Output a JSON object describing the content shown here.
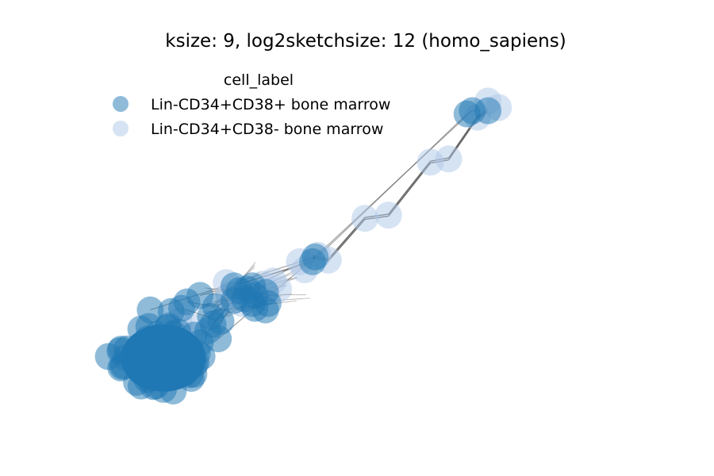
{
  "chart_data": {
    "type": "scatter",
    "subtype": "network-graph",
    "title": "ksize: 9, log2sketchsize: 12 (homo_sapiens)",
    "xlabel": "",
    "ylabel": "",
    "axes_visible": false,
    "grid": false,
    "legend": {
      "title": "cell_label",
      "placement": "top-left",
      "entries": [
        {
          "label": "Lin-CD34+CD38+ bone marrow",
          "color": "#1f77b4",
          "alpha": 0.5
        },
        {
          "label": "Lin-CD34+CD38- bone marrow",
          "color": "#aec7e8",
          "alpha": 0.5
        }
      ]
    },
    "xlim": [
      0,
      100
    ],
    "ylim": [
      0,
      100
    ],
    "series": [
      {
        "name": "Lin-CD34+CD38+ bone marrow",
        "cluster": {
          "center": [
            11.5,
            12.0
          ],
          "spread": [
            8.5,
            11.0
          ],
          "count": 60
        },
        "x": [
          1.0,
          9.0,
          13.0,
          15.0,
          16.0,
          18.5,
          20.5,
          21.0,
          20.0,
          22.0,
          22.5,
          21.5,
          25.0,
          25.0,
          26.0,
          27.5,
          28.5,
          29.0,
          28.5,
          29.0,
          27.0,
          31.0,
          31.5,
          31.0,
          40.5,
          40.0,
          69.5,
          70.5,
          73.5
        ],
        "y": [
          12.5,
          27.0,
          26.5,
          27.5,
          29.5,
          31.5,
          25.0,
          22.5,
          20.5,
          18.0,
          23.5,
          28.0,
          34.5,
          30.0,
          33.0,
          33.5,
          34.5,
          31.5,
          29.0,
          27.5,
          30.5,
          32.5,
          29.0,
          27.0,
          43.5,
          42.0,
          88.0,
          89.0,
          89.0
        ]
      },
      {
        "name": "Lin-CD34+CD38- bone marrow",
        "x": [
          14.5,
          17.5,
          23.5,
          24.0,
          26.5,
          30.5,
          32.5,
          33.5,
          37.5,
          38.5,
          41.0,
          43.0,
          50.0,
          54.5,
          62.5,
          66.0,
          71.5,
          73.5,
          75.5
        ],
        "y": [
          23.5,
          21.5,
          35.5,
          31.5,
          29.0,
          35.0,
          36.0,
          33.5,
          42.0,
          39.5,
          44.0,
          42.5,
          55.5,
          56.5,
          73.0,
          74.0,
          87.0,
          92.0,
          90.0
        ]
      }
    ],
    "edges": [
      [
        1,
        24
      ],
      [
        5,
        25
      ],
      [
        9,
        24
      ],
      [
        12,
        25
      ],
      [
        15,
        24
      ],
      [
        24,
        25
      ],
      [
        25,
        26
      ],
      [
        24,
        27
      ],
      [
        26,
        27
      ],
      [
        27,
        28
      ],
      [
        13,
        16
      ],
      [
        14,
        17
      ],
      [
        18,
        21
      ],
      [
        19,
        22
      ],
      [
        20,
        23
      ],
      [
        3,
        10
      ],
      [
        4,
        11
      ],
      [
        6,
        12
      ],
      [
        7,
        13
      ],
      [
        8,
        14
      ],
      [
        10,
        15
      ],
      [
        11,
        16
      ]
    ]
  }
}
